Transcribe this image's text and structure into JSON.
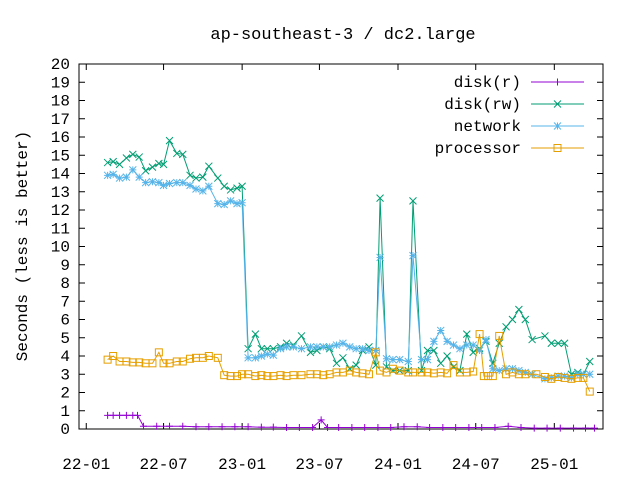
{
  "chart_data": {
    "type": "line",
    "title": "ap-southeast-3 / dc2.large",
    "xlabel": "",
    "ylabel": "Seconds (less is better)",
    "ylim": [
      0,
      20
    ],
    "yticks": [
      0,
      1,
      2,
      3,
      4,
      5,
      6,
      7,
      8,
      9,
      10,
      11,
      12,
      13,
      14,
      15,
      16,
      17,
      18,
      19,
      20
    ],
    "xlim": [
      "2021-12-15",
      "2025-04-25"
    ],
    "xticks": [
      {
        "date": "2022-01-01",
        "label": "22-01"
      },
      {
        "date": "2022-07-01",
        "label": "22-07"
      },
      {
        "date": "2023-01-01",
        "label": "23-01"
      },
      {
        "date": "2023-07-01",
        "label": "23-07"
      },
      {
        "date": "2024-01-01",
        "label": "24-01"
      },
      {
        "date": "2024-07-01",
        "label": "24-07"
      },
      {
        "date": "2025-01-01",
        "label": "25-01"
      }
    ],
    "legend_position": "top-right",
    "grid": false,
    "series": [
      {
        "name": "disk(r)",
        "color": "#9400d3",
        "marker": "plus",
        "points": [
          [
            "2022-02-20",
            0.75
          ],
          [
            "2022-03-05",
            0.75
          ],
          [
            "2022-03-20",
            0.75
          ],
          [
            "2022-04-05",
            0.75
          ],
          [
            "2022-04-20",
            0.75
          ],
          [
            "2022-05-01",
            0.75
          ],
          [
            "2022-05-15",
            0.15
          ],
          [
            "2022-06-15",
            0.15
          ],
          [
            "2022-07-15",
            0.15
          ],
          [
            "2022-08-15",
            0.15
          ],
          [
            "2022-09-15",
            0.12
          ],
          [
            "2022-10-15",
            0.12
          ],
          [
            "2022-11-15",
            0.12
          ],
          [
            "2022-12-15",
            0.12
          ],
          [
            "2023-01-15",
            0.12
          ],
          [
            "2023-02-15",
            0.1
          ],
          [
            "2023-03-15",
            0.1
          ],
          [
            "2023-04-15",
            0.08
          ],
          [
            "2023-05-15",
            0.08
          ],
          [
            "2023-06-15",
            0.08
          ],
          [
            "2023-07-05",
            0.5
          ],
          [
            "2023-07-20",
            0.08
          ],
          [
            "2023-08-15",
            0.08
          ],
          [
            "2023-09-15",
            0.08
          ],
          [
            "2023-10-15",
            0.08
          ],
          [
            "2023-11-15",
            0.08
          ],
          [
            "2023-12-15",
            0.08
          ],
          [
            "2024-01-15",
            0.12
          ],
          [
            "2024-02-15",
            0.12
          ],
          [
            "2024-03-15",
            0.08
          ],
          [
            "2024-04-15",
            0.08
          ],
          [
            "2024-05-15",
            0.08
          ],
          [
            "2024-06-15",
            0.08
          ],
          [
            "2024-07-15",
            0.08
          ],
          [
            "2024-08-15",
            0.08
          ],
          [
            "2024-09-15",
            0.15
          ],
          [
            "2024-10-15",
            0.08
          ],
          [
            "2024-11-15",
            0.05
          ],
          [
            "2024-12-15",
            0.05
          ],
          [
            "2025-01-15",
            0.05
          ],
          [
            "2025-02-15",
            0.05
          ],
          [
            "2025-03-15",
            0.05
          ],
          [
            "2025-04-05",
            0.05
          ]
        ]
      },
      {
        "name": "disk(rw)",
        "color": "#009e73",
        "marker": "cross",
        "points": [
          [
            "2022-02-20",
            14.6
          ],
          [
            "2022-03-05",
            14.65
          ],
          [
            "2022-03-20",
            14.5
          ],
          [
            "2022-04-05",
            14.85
          ],
          [
            "2022-04-20",
            15.05
          ],
          [
            "2022-05-05",
            14.9
          ],
          [
            "2022-05-20",
            14.15
          ],
          [
            "2022-06-05",
            14.35
          ],
          [
            "2022-06-20",
            14.55
          ],
          [
            "2022-07-01",
            14.5
          ],
          [
            "2022-07-15",
            15.8
          ],
          [
            "2022-08-01",
            15.1
          ],
          [
            "2022-08-15",
            15.05
          ],
          [
            "2022-09-01",
            13.9
          ],
          [
            "2022-09-15",
            13.75
          ],
          [
            "2022-10-01",
            13.8
          ],
          [
            "2022-10-15",
            14.4
          ],
          [
            "2022-11-05",
            13.75
          ],
          [
            "2022-11-20",
            13.3
          ],
          [
            "2022-12-05",
            13.1
          ],
          [
            "2022-12-20",
            13.2
          ],
          [
            "2023-01-01",
            13.3
          ],
          [
            "2023-01-15",
            4.4
          ],
          [
            "2023-02-01",
            5.2
          ],
          [
            "2023-02-15",
            4.4
          ],
          [
            "2023-03-01",
            4.4
          ],
          [
            "2023-03-15",
            4.4
          ],
          [
            "2023-04-01",
            4.5
          ],
          [
            "2023-04-15",
            4.7
          ],
          [
            "2023-05-01",
            4.6
          ],
          [
            "2023-05-20",
            5.1
          ],
          [
            "2023-06-10",
            4.2
          ],
          [
            "2023-06-25",
            4.3
          ],
          [
            "2023-07-10",
            4.5
          ],
          [
            "2023-07-25",
            4.4
          ],
          [
            "2023-08-10",
            3.6
          ],
          [
            "2023-08-25",
            3.9
          ],
          [
            "2023-09-10",
            3.3
          ],
          [
            "2023-09-25",
            3.5
          ],
          [
            "2023-10-10",
            4.3
          ],
          [
            "2023-10-25",
            4.5
          ],
          [
            "2023-11-10",
            3.5
          ],
          [
            "2023-11-20",
            12.65
          ],
          [
            "2023-12-05",
            3.4
          ],
          [
            "2023-12-20",
            3.2
          ],
          [
            "2024-01-05",
            3.2
          ],
          [
            "2024-01-25",
            3.2
          ],
          [
            "2024-02-05",
            12.5
          ],
          [
            "2024-02-25",
            3.2
          ],
          [
            "2024-03-10",
            4.3
          ],
          [
            "2024-03-25",
            4.3
          ],
          [
            "2024-04-10",
            3.6
          ],
          [
            "2024-04-25",
            4.0
          ],
          [
            "2024-05-10",
            3.4
          ],
          [
            "2024-05-25",
            3.2
          ],
          [
            "2024-06-10",
            5.2
          ],
          [
            "2024-06-25",
            4.2
          ],
          [
            "2024-07-10",
            4.4
          ],
          [
            "2024-07-25",
            4.8
          ],
          [
            "2024-08-10",
            3.6
          ],
          [
            "2024-08-25",
            4.7
          ],
          [
            "2024-09-10",
            5.6
          ],
          [
            "2024-09-25",
            6.0
          ],
          [
            "2024-10-10",
            6.55
          ],
          [
            "2024-10-25",
            6.0
          ],
          [
            "2024-11-10",
            4.9
          ],
          [
            "2024-12-10",
            5.1
          ],
          [
            "2024-12-25",
            4.7
          ],
          [
            "2025-01-10",
            4.7
          ],
          [
            "2025-01-25",
            4.7
          ],
          [
            "2025-02-10",
            3.0
          ],
          [
            "2025-02-25",
            3.1
          ],
          [
            "2025-03-10",
            3.0
          ],
          [
            "2025-03-25",
            3.7
          ]
        ]
      },
      {
        "name": "network",
        "color": "#56b4e9",
        "marker": "star",
        "points": [
          [
            "2022-02-20",
            13.9
          ],
          [
            "2022-03-05",
            13.95
          ],
          [
            "2022-03-20",
            13.75
          ],
          [
            "2022-04-05",
            13.8
          ],
          [
            "2022-04-20",
            14.2
          ],
          [
            "2022-05-05",
            13.8
          ],
          [
            "2022-05-20",
            13.5
          ],
          [
            "2022-06-05",
            13.55
          ],
          [
            "2022-06-20",
            13.5
          ],
          [
            "2022-07-01",
            13.35
          ],
          [
            "2022-07-15",
            13.45
          ],
          [
            "2022-08-01",
            13.5
          ],
          [
            "2022-08-15",
            13.5
          ],
          [
            "2022-09-01",
            13.35
          ],
          [
            "2022-09-15",
            13.15
          ],
          [
            "2022-10-01",
            13.05
          ],
          [
            "2022-10-15",
            13.3
          ],
          [
            "2022-11-05",
            12.35
          ],
          [
            "2022-11-20",
            12.3
          ],
          [
            "2022-12-05",
            12.5
          ],
          [
            "2022-12-20",
            12.35
          ],
          [
            "2023-01-01",
            12.4
          ],
          [
            "2023-01-15",
            3.9
          ],
          [
            "2023-02-01",
            3.9
          ],
          [
            "2023-02-15",
            4.0
          ],
          [
            "2023-03-01",
            4.1
          ],
          [
            "2023-03-15",
            4.05
          ],
          [
            "2023-04-01",
            4.4
          ],
          [
            "2023-04-15",
            4.5
          ],
          [
            "2023-05-01",
            4.5
          ],
          [
            "2023-05-20",
            4.4
          ],
          [
            "2023-06-10",
            4.5
          ],
          [
            "2023-06-25",
            4.5
          ],
          [
            "2023-07-10",
            4.5
          ],
          [
            "2023-07-25",
            4.5
          ],
          [
            "2023-08-10",
            4.6
          ],
          [
            "2023-08-25",
            4.7
          ],
          [
            "2023-09-10",
            4.5
          ],
          [
            "2023-09-25",
            4.4
          ],
          [
            "2023-10-10",
            4.4
          ],
          [
            "2023-10-25",
            4.3
          ],
          [
            "2023-11-10",
            4.3
          ],
          [
            "2023-11-20",
            9.4
          ],
          [
            "2023-12-05",
            3.85
          ],
          [
            "2023-12-20",
            3.8
          ],
          [
            "2024-01-05",
            3.8
          ],
          [
            "2024-01-25",
            3.7
          ],
          [
            "2024-02-05",
            9.5
          ],
          [
            "2024-02-25",
            3.8
          ],
          [
            "2024-03-10",
            3.8
          ],
          [
            "2024-03-25",
            4.8
          ],
          [
            "2024-04-10",
            5.4
          ],
          [
            "2024-04-25",
            4.8
          ],
          [
            "2024-05-10",
            4.6
          ],
          [
            "2024-05-25",
            4.4
          ],
          [
            "2024-06-10",
            4.6
          ],
          [
            "2024-06-25",
            4.6
          ],
          [
            "2024-07-10",
            4.3
          ],
          [
            "2024-07-25",
            4.9
          ],
          [
            "2024-08-10",
            3.3
          ],
          [
            "2024-08-25",
            3.2
          ],
          [
            "2024-09-10",
            3.3
          ],
          [
            "2024-09-25",
            3.3
          ],
          [
            "2024-10-10",
            3.2
          ],
          [
            "2024-10-25",
            3.1
          ],
          [
            "2024-11-10",
            3.0
          ],
          [
            "2024-12-10",
            2.75
          ],
          [
            "2024-12-25",
            2.8
          ],
          [
            "2025-01-10",
            2.9
          ],
          [
            "2025-01-25",
            2.9
          ],
          [
            "2025-02-10",
            2.8
          ],
          [
            "2025-02-25",
            3.0
          ],
          [
            "2025-03-10",
            3.0
          ],
          [
            "2025-03-25",
            3.0
          ]
        ]
      },
      {
        "name": "processor",
        "color": "#e69f00",
        "marker": "square",
        "points": [
          [
            "2022-02-20",
            3.8
          ],
          [
            "2022-03-05",
            4.0
          ],
          [
            "2022-03-20",
            3.7
          ],
          [
            "2022-04-05",
            3.7
          ],
          [
            "2022-04-20",
            3.65
          ],
          [
            "2022-05-05",
            3.65
          ],
          [
            "2022-05-20",
            3.6
          ],
          [
            "2022-06-05",
            3.6
          ],
          [
            "2022-06-20",
            4.2
          ],
          [
            "2022-07-01",
            3.6
          ],
          [
            "2022-07-15",
            3.6
          ],
          [
            "2022-08-01",
            3.7
          ],
          [
            "2022-08-15",
            3.7
          ],
          [
            "2022-09-01",
            3.85
          ],
          [
            "2022-09-15",
            3.9
          ],
          [
            "2022-10-01",
            3.9
          ],
          [
            "2022-10-15",
            4.0
          ],
          [
            "2022-11-05",
            3.9
          ],
          [
            "2022-11-20",
            2.95
          ],
          [
            "2022-12-05",
            2.9
          ],
          [
            "2022-12-20",
            2.9
          ],
          [
            "2023-01-01",
            3.0
          ],
          [
            "2023-01-15",
            3.0
          ],
          [
            "2023-02-01",
            2.9
          ],
          [
            "2023-02-15",
            2.95
          ],
          [
            "2023-03-01",
            2.9
          ],
          [
            "2023-03-15",
            2.9
          ],
          [
            "2023-04-01",
            2.95
          ],
          [
            "2023-04-15",
            2.9
          ],
          [
            "2023-05-01",
            2.95
          ],
          [
            "2023-05-20",
            2.95
          ],
          [
            "2023-06-10",
            3.0
          ],
          [
            "2023-06-25",
            3.0
          ],
          [
            "2023-07-10",
            2.95
          ],
          [
            "2023-07-25",
            3.0
          ],
          [
            "2023-08-10",
            3.1
          ],
          [
            "2023-08-25",
            3.1
          ],
          [
            "2023-09-10",
            3.2
          ],
          [
            "2023-09-25",
            3.1
          ],
          [
            "2023-10-10",
            3.05
          ],
          [
            "2023-10-25",
            3.0
          ],
          [
            "2023-11-10",
            4.2
          ],
          [
            "2023-11-20",
            3.2
          ],
          [
            "2023-12-05",
            3.1
          ],
          [
            "2023-12-20",
            3.3
          ],
          [
            "2024-01-05",
            3.2
          ],
          [
            "2024-01-25",
            3.1
          ],
          [
            "2024-02-05",
            3.1
          ],
          [
            "2024-02-25",
            3.1
          ],
          [
            "2024-03-10",
            3.1
          ],
          [
            "2024-03-25",
            3.05
          ],
          [
            "2024-04-10",
            3.1
          ],
          [
            "2024-04-25",
            3.05
          ],
          [
            "2024-05-10",
            3.5
          ],
          [
            "2024-05-25",
            3.1
          ],
          [
            "2024-06-10",
            3.1
          ],
          [
            "2024-06-25",
            3.15
          ],
          [
            "2024-07-10",
            5.2
          ],
          [
            "2024-07-20",
            2.9
          ],
          [
            "2024-07-30",
            2.9
          ],
          [
            "2024-08-10",
            2.9
          ],
          [
            "2024-08-25",
            5.1
          ],
          [
            "2024-09-10",
            3.0
          ],
          [
            "2024-09-25",
            3.1
          ],
          [
            "2024-10-10",
            3.0
          ],
          [
            "2024-10-25",
            3.0
          ],
          [
            "2024-11-20",
            3.0
          ],
          [
            "2024-12-10",
            2.85
          ],
          [
            "2024-12-25",
            2.75
          ],
          [
            "2025-01-10",
            2.85
          ],
          [
            "2025-01-25",
            2.8
          ],
          [
            "2025-02-10",
            2.75
          ],
          [
            "2025-02-25",
            2.8
          ],
          [
            "2025-03-10",
            2.8
          ],
          [
            "2025-03-25",
            2.05
          ]
        ]
      }
    ]
  }
}
